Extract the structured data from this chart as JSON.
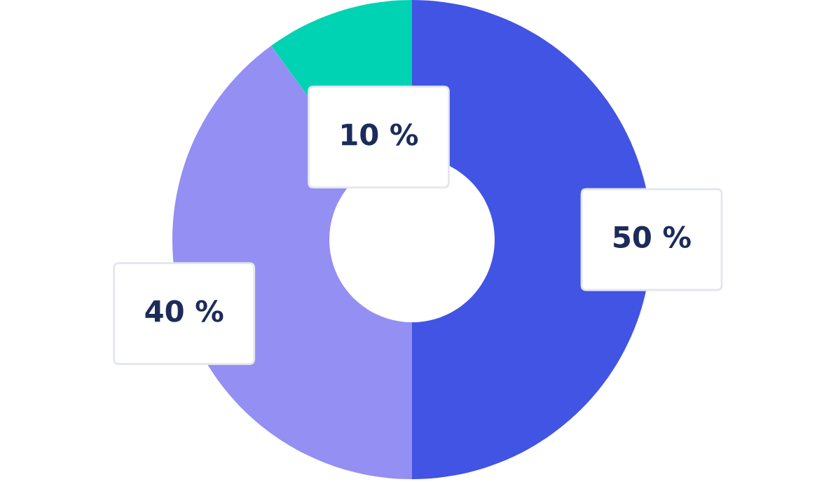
{
  "chart_data": {
    "type": "donut",
    "categories": [
      null,
      null,
      null
    ],
    "values": [
      50,
      40,
      10
    ],
    "colors": [
      "#4254e3",
      "#948ff2",
      "#00d2b4"
    ],
    "value_labels": [
      "50 %",
      "40 %",
      "10 %"
    ],
    "legend": false
  }
}
